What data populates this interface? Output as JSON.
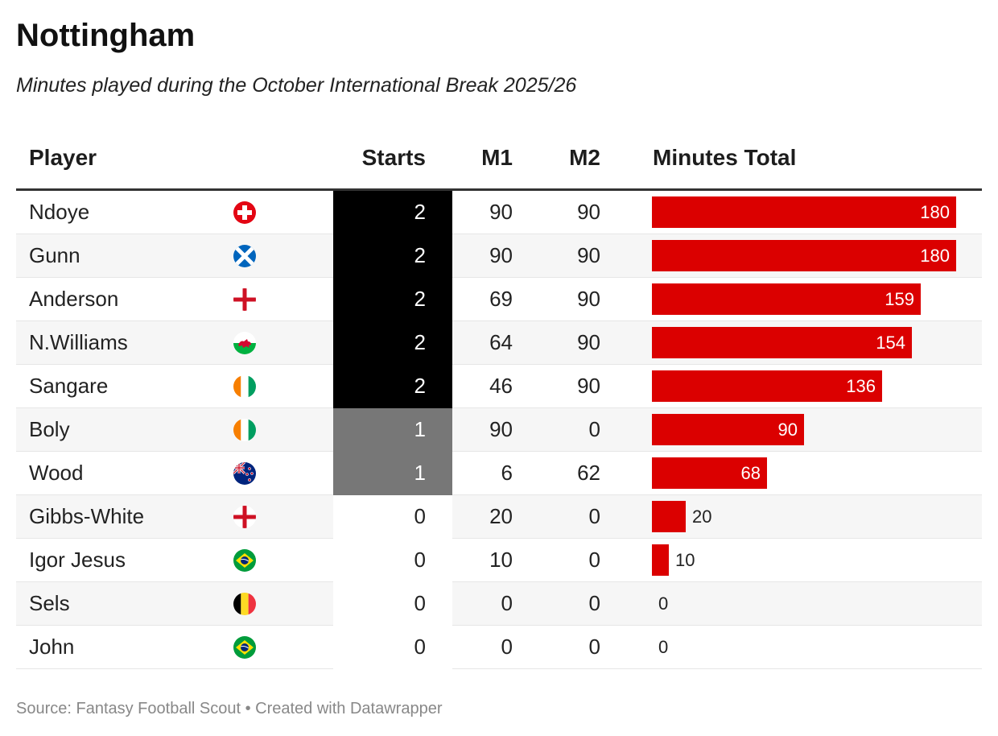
{
  "title": "Nottingham",
  "subtitle": "Minutes played during the October International Break 2025/26",
  "columns": {
    "player": "Player",
    "starts": "Starts",
    "m1": "M1",
    "m2": "M2",
    "total": "Minutes Total"
  },
  "source": "Source: Fantasy Football Scout • Created with Datawrapper",
  "colors": {
    "bar": "#db0000",
    "starts_2": "#000000",
    "starts_1": "#777777",
    "row_alt": "#f6f6f6"
  },
  "chart_data": {
    "type": "table",
    "bar_max": 180,
    "rows": [
      {
        "player": "Ndoye",
        "flag": "switzerland-flag-icon",
        "starts": 2,
        "m1": 90,
        "m2": 90,
        "total": 180
      },
      {
        "player": "Gunn",
        "flag": "scotland-flag-icon",
        "starts": 2,
        "m1": 90,
        "m2": 90,
        "total": 180
      },
      {
        "player": "Anderson",
        "flag": "england-flag-icon",
        "starts": 2,
        "m1": 69,
        "m2": 90,
        "total": 159
      },
      {
        "player": "N.Williams",
        "flag": "wales-flag-icon",
        "starts": 2,
        "m1": 64,
        "m2": 90,
        "total": 154
      },
      {
        "player": "Sangare",
        "flag": "ivory-coast-flag-icon",
        "starts": 2,
        "m1": 46,
        "m2": 90,
        "total": 136
      },
      {
        "player": "Boly",
        "flag": "ivory-coast-flag-icon",
        "starts": 1,
        "m1": 90,
        "m2": 0,
        "total": 90
      },
      {
        "player": "Wood",
        "flag": "new-zealand-flag-icon",
        "starts": 1,
        "m1": 6,
        "m2": 62,
        "total": 68
      },
      {
        "player": "Gibbs-White",
        "flag": "england-flag-icon",
        "starts": 0,
        "m1": 20,
        "m2": 0,
        "total": 20
      },
      {
        "player": "Igor Jesus",
        "flag": "brazil-flag-icon",
        "starts": 0,
        "m1": 10,
        "m2": 0,
        "total": 10
      },
      {
        "player": "Sels",
        "flag": "belgium-flag-icon",
        "starts": 0,
        "m1": 0,
        "m2": 0,
        "total": 0
      },
      {
        "player": "John",
        "flag": "brazil-flag-icon",
        "starts": 0,
        "m1": 0,
        "m2": 0,
        "total": 0
      }
    ]
  }
}
